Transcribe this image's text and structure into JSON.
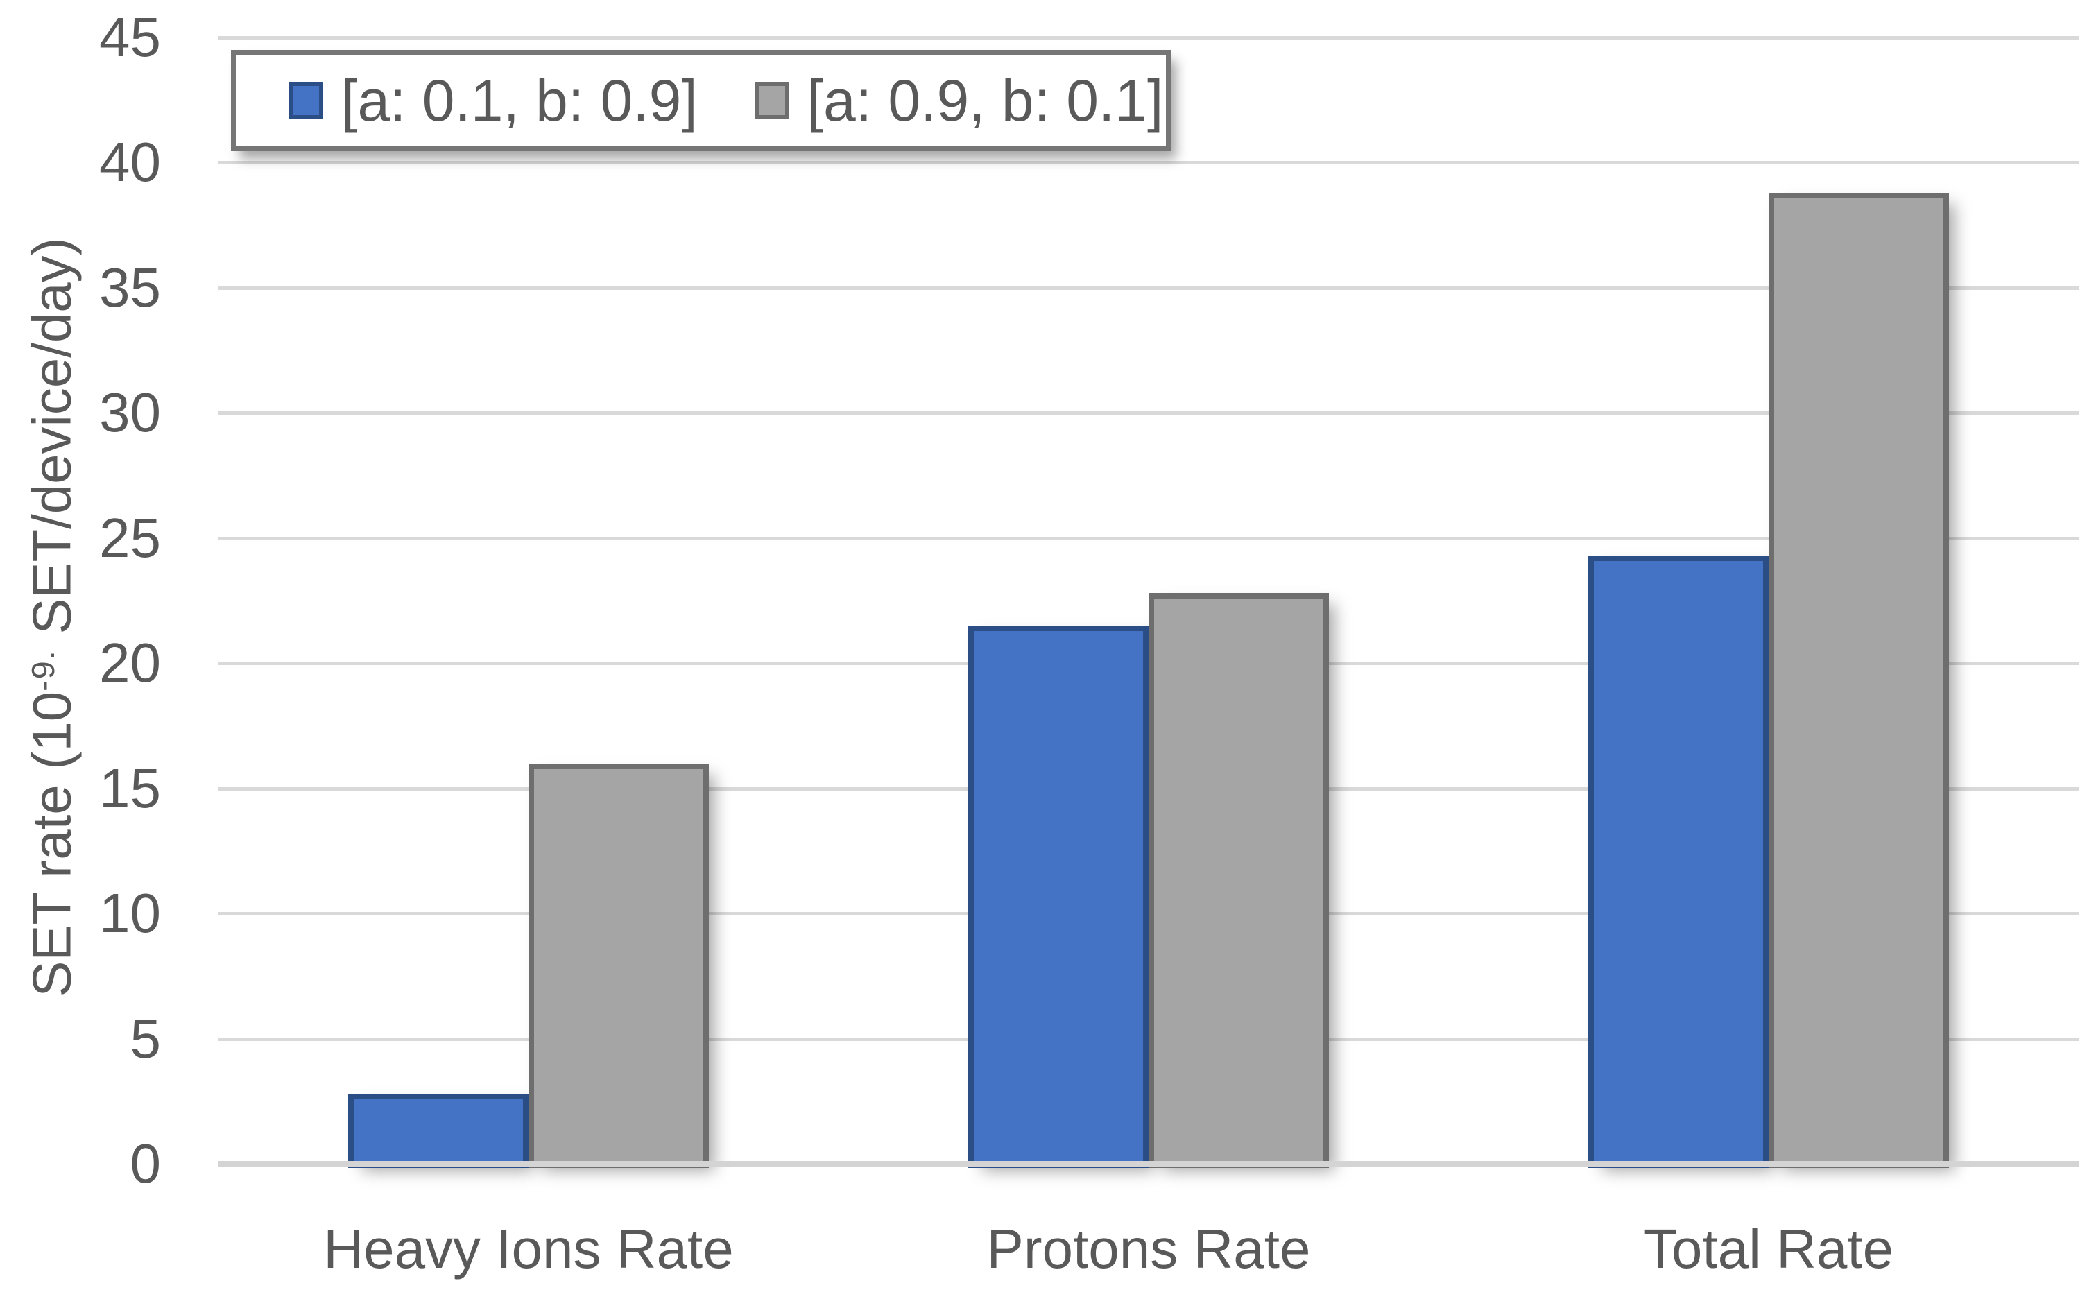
{
  "chart_data": {
    "type": "bar",
    "title": "",
    "categories": [
      "Heavy Ions Rate",
      "Protons Rate",
      "Total Rate"
    ],
    "series": [
      {
        "name": "[a: 0.1, b: 0.9]",
        "values": [
          2.8,
          21.5,
          24.3
        ],
        "fill": "#4472C4",
        "border": "#2C4E87"
      },
      {
        "name": "[a: 0.9, b: 0.1]",
        "values": [
          16.0,
          22.8,
          38.8
        ],
        "fill": "#A5A5A5",
        "border": "#6E6E6E"
      }
    ],
    "ylabel_parts": {
      "prefix": "SET rate (10",
      "sup": "-9.",
      "suffix": " SET/device/day)"
    },
    "ylabel_text": "SET rate (10-9. SET/device/day)",
    "xlabel": "",
    "ylim": [
      0,
      45
    ],
    "yticks": [
      0,
      5,
      10,
      15,
      20,
      25,
      30,
      35,
      40,
      45
    ],
    "grid": true,
    "legend_position": "top-left",
    "colors": {
      "gridline": "#D9D9D9",
      "zero_line": "#D4D4D4",
      "axis_text": "#595959",
      "legend_border": "#767676",
      "series1_fill": "#4472C4",
      "series1_border": "#2C4E87",
      "series2_fill": "#A5A5A5",
      "series2_border": "#6E6E6E"
    }
  }
}
